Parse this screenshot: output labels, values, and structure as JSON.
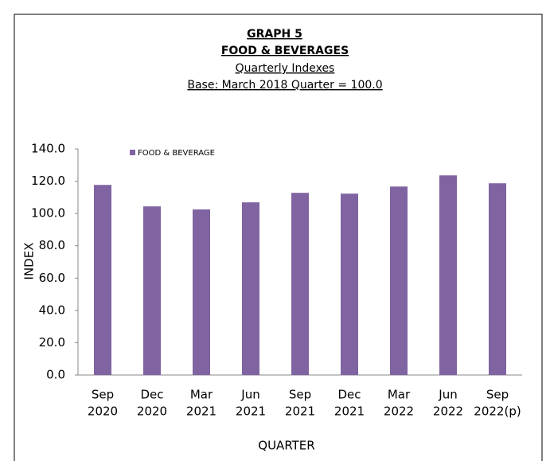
{
  "chart_data": {
    "type": "bar",
    "title": [
      "GRAPH 5",
      "FOOD & BEVERAGES"
    ],
    "subtitle": [
      "Quarterly Indexes",
      "Base: March 2018 Quarter = 100.0"
    ],
    "categories": [
      [
        "Sep",
        "2020"
      ],
      [
        "Dec",
        "2020"
      ],
      [
        "Mar",
        "2021"
      ],
      [
        "Jun",
        "2021"
      ],
      [
        "Sep",
        "2021"
      ],
      [
        "Dec",
        "2021"
      ],
      [
        "Mar",
        "2022"
      ],
      [
        "Jun",
        "2022"
      ],
      [
        "Sep",
        "2022(p)"
      ]
    ],
    "series": [
      {
        "name": "FOOD & BEVERAGE",
        "color": "#8064a2",
        "values": [
          117.7,
          104.4,
          102.5,
          106.9,
          112.8,
          112.3,
          116.7,
          123.6,
          118.7
        ]
      }
    ],
    "ylim": [
      0,
      140
    ],
    "yticks": [
      {
        "value": 0,
        "label": "0.0"
      },
      {
        "value": 20,
        "label": "20.0"
      },
      {
        "value": 40,
        "label": "40.0"
      },
      {
        "value": 60,
        "label": "60.0"
      },
      {
        "value": 80,
        "label": "80.0"
      },
      {
        "value": 100,
        "label": "100.0"
      },
      {
        "value": 120,
        "label": "120.0"
      },
      {
        "value": 140,
        "label": "140.0"
      }
    ],
    "y_label": "INDEX",
    "x_label": "QUARTER",
    "legend": "top-left"
  }
}
